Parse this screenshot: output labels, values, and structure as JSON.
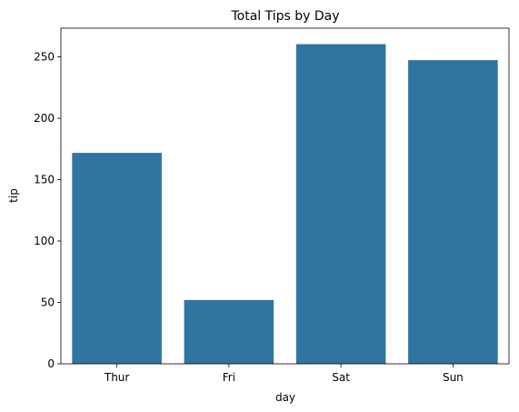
{
  "chart_data": {
    "type": "bar",
    "title": "Total Tips by Day",
    "xlabel": "day",
    "ylabel": "tip",
    "categories": [
      "Thur",
      "Fri",
      "Sat",
      "Sun"
    ],
    "values": [
      171.83,
      51.96,
      260.4,
      247.39
    ],
    "ylim": [
      0,
      273.4
    ],
    "yticks": [
      0,
      50,
      100,
      150,
      200,
      250
    ],
    "ytick_labels": [
      "0",
      "50",
      "100",
      "150",
      "200",
      "250"
    ],
    "grid": false,
    "bar_color": "#3274a1"
  }
}
